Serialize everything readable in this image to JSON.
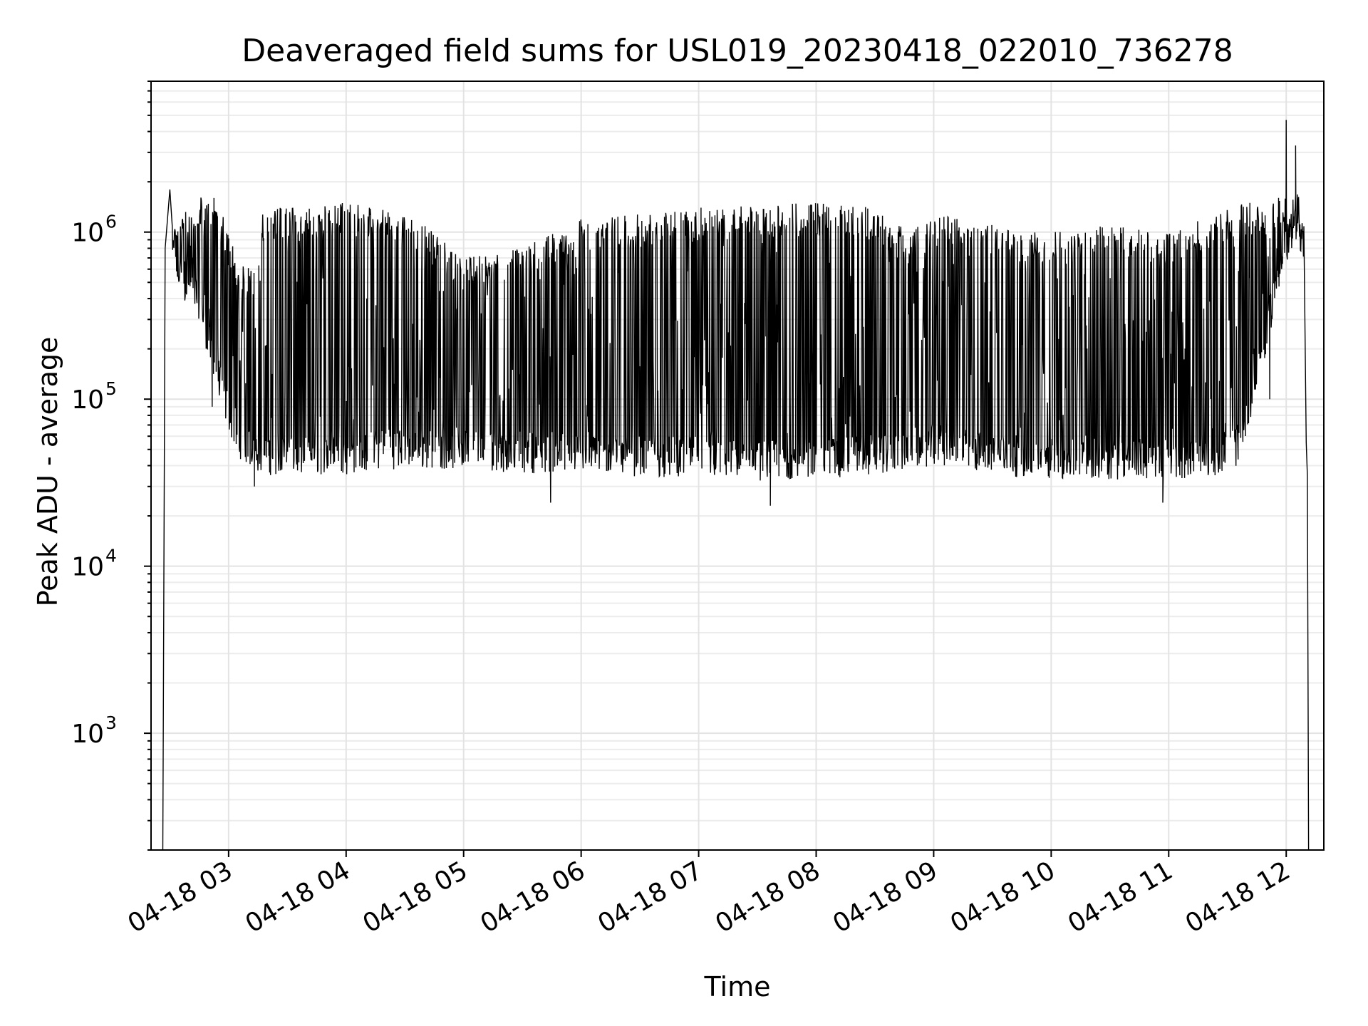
{
  "chart_data": {
    "type": "line",
    "title": "Deaveraged field sums for USL019_20230418_022010_736278",
    "xlabel": "Time",
    "ylabel": "Peak ADU - average",
    "yscale": "log",
    "ylim": [
      200,
      8000000
    ],
    "xlim_hours": [
      2.34,
      12.32
    ],
    "grid": true,
    "line_color": "#000000",
    "x_ticks": [
      {
        "hour": 3,
        "label": "04-18 03"
      },
      {
        "hour": 4,
        "label": "04-18 04"
      },
      {
        "hour": 5,
        "label": "04-18 05"
      },
      {
        "hour": 6,
        "label": "04-18 06"
      },
      {
        "hour": 7,
        "label": "04-18 07"
      },
      {
        "hour": 8,
        "label": "04-18 08"
      },
      {
        "hour": 9,
        "label": "04-18 09"
      },
      {
        "hour": 10,
        "label": "04-18 10"
      },
      {
        "hour": 11,
        "label": "04-18 11"
      },
      {
        "hour": 12,
        "label": "04-18 12"
      }
    ],
    "y_ticks": [
      {
        "value": 1000,
        "base": "10",
        "exp": "3"
      },
      {
        "value": 10000,
        "base": "10",
        "exp": "4"
      },
      {
        "value": 100000,
        "base": "10",
        "exp": "5"
      },
      {
        "value": 1000000,
        "base": "10",
        "exp": "6"
      }
    ],
    "series": [
      {
        "envelope": [
          {
            "hour": 2.44,
            "low": 1000000,
            "high": 1800000
          },
          {
            "hour": 2.55,
            "low": 450000,
            "high": 1100000
          },
          {
            "hour": 2.75,
            "low": 300000,
            "high": 1700000
          },
          {
            "hour": 2.85,
            "low": 150000,
            "high": 1750000
          },
          {
            "hour": 2.95,
            "low": 80000,
            "high": 1300000
          },
          {
            "hour": 3.08,
            "low": 45000,
            "high": 700000
          },
          {
            "hour": 3.2,
            "low": 38000,
            "high": 600000
          },
          {
            "hour": 3.3,
            "low": 35000,
            "high": 1400000
          },
          {
            "hour": 3.6,
            "low": 35000,
            "high": 1400000
          },
          {
            "hour": 4.0,
            "low": 35000,
            "high": 1500000
          },
          {
            "hour": 4.3,
            "low": 38000,
            "high": 1400000
          },
          {
            "hour": 4.6,
            "low": 38000,
            "high": 1200000
          },
          {
            "hour": 5.0,
            "low": 38000,
            "high": 700000
          },
          {
            "hour": 5.5,
            "low": 36000,
            "high": 800000
          },
          {
            "hour": 6.0,
            "low": 36000,
            "high": 1200000
          },
          {
            "hour": 6.6,
            "low": 34000,
            "high": 1300000
          },
          {
            "hour": 7.0,
            "low": 34000,
            "high": 1400000
          },
          {
            "hour": 7.5,
            "low": 32000,
            "high": 1450000
          },
          {
            "hour": 8.0,
            "low": 33000,
            "high": 1500000
          },
          {
            "hour": 8.5,
            "low": 35000,
            "high": 1400000
          },
          {
            "hour": 8.8,
            "low": 38000,
            "high": 1000000
          },
          {
            "hour": 9.0,
            "low": 40000,
            "high": 1300000
          },
          {
            "hour": 9.5,
            "low": 35000,
            "high": 1100000
          },
          {
            "hour": 10.0,
            "low": 33000,
            "high": 1000000
          },
          {
            "hour": 10.5,
            "low": 33000,
            "high": 1100000
          },
          {
            "hour": 11.0,
            "low": 33000,
            "high": 1000000
          },
          {
            "hour": 11.4,
            "low": 35000,
            "high": 1300000
          },
          {
            "hour": 11.6,
            "low": 40000,
            "high": 1500000
          },
          {
            "hour": 11.8,
            "low": 150000,
            "high": 1500000
          },
          {
            "hour": 11.95,
            "low": 500000,
            "high": 1700000
          },
          {
            "hour": 12.1,
            "low": 900000,
            "high": 1700000
          },
          {
            "hour": 12.15,
            "low": 600000,
            "high": 1500000
          }
        ],
        "spikes": [
          {
            "hour": 2.86,
            "value": 90000
          },
          {
            "hour": 3.22,
            "value": 30000
          },
          {
            "hour": 5.74,
            "value": 24000
          },
          {
            "hour": 7.61,
            "value": 23000
          },
          {
            "hour": 10.95,
            "value": 24000
          },
          {
            "hour": 11.86,
            "value": 100000
          },
          {
            "hour": 12.0,
            "value": 4700000
          },
          {
            "hour": 12.08,
            "value": 3300000
          },
          {
            "hour": 12.17,
            "value": 55000
          },
          {
            "hour": 12.18,
            "value": 35000
          }
        ],
        "start_hour": 2.44,
        "end_hour": 12.19
      }
    ]
  }
}
